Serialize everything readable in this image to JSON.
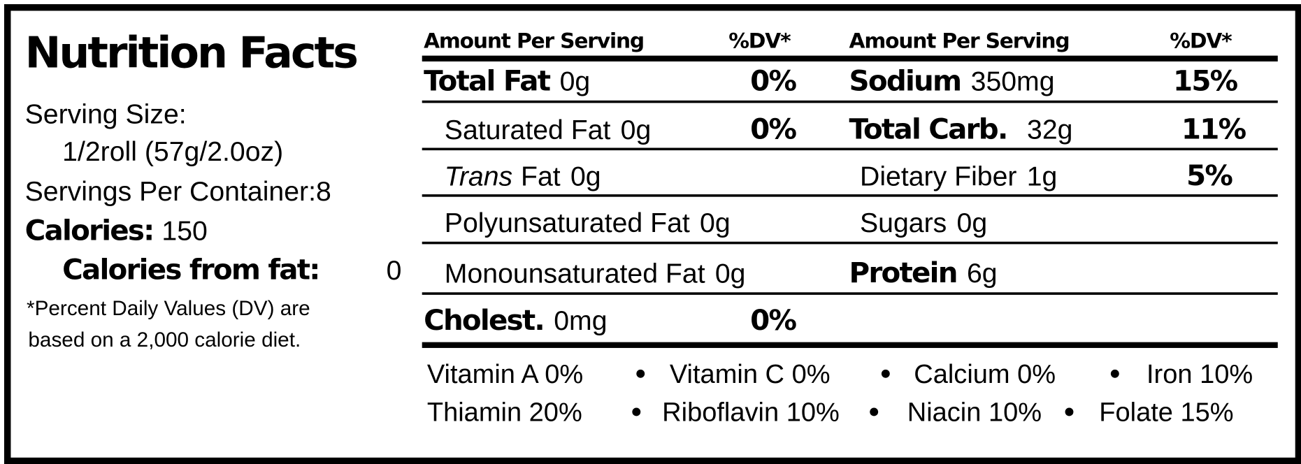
{
  "header": {
    "title": "Nutrition Facts"
  },
  "serving": {
    "size_label": "Serving Size:",
    "size": "1/2roll (57g/2.0oz)",
    "per_container": "Servings Per Container:8",
    "calories_label": "Calories:",
    "calories": "150",
    "calories_fat_label": "Calories from fat:",
    "calories_fat": "0",
    "footnote": [
      "*Percent Daily Values (DV) are",
      "based on a 2,000 calorie diet."
    ]
  },
  "table": {
    "headers": [
      "Amount Per Serving",
      "%DV*",
      "Amount Per Serving",
      "%DV*"
    ],
    "rows": [
      {
        "left": {
          "name": "Total Fat",
          "amount": "0g",
          "dv": "0%"
        },
        "right": {
          "name": "Sodium",
          "amount": "350mg",
          "dv": "15%"
        }
      },
      {
        "left": {
          "name": "Saturated Fat",
          "amount": "0g",
          "dv": "0%"
        },
        "right": {
          "name": "Total Carb.",
          "amount": "32g",
          "dv": "11%"
        }
      },
      {
        "left": {
          "italic": "Trans",
          "name": "Fat",
          "amount": "0g"
        },
        "right": {
          "name": "Dietary Fiber",
          "amount": "1g",
          "dv": "5%"
        }
      },
      {
        "left": {
          "name": "Polyunsaturated Fat",
          "amount": "0g"
        },
        "right": {
          "name": "Sugars",
          "amount": "0g"
        }
      },
      {
        "left": {
          "name": "Monounsaturated Fat",
          "amount": "0g"
        },
        "right": {
          "name": "Protein",
          "amount": "6g"
        }
      },
      {
        "left": {
          "name": "Cholest.",
          "amount": "0mg",
          "dv": "0%"
        }
      }
    ]
  },
  "vitamins": [
    [
      "Vitamin A 0%",
      "Vitamin C 0%",
      "Calcium 0%",
      "Iron 10%"
    ],
    [
      "Thiamin 20%",
      "Riboflavin 10%",
      "Niacin 10%",
      "Folate 15%"
    ]
  ]
}
